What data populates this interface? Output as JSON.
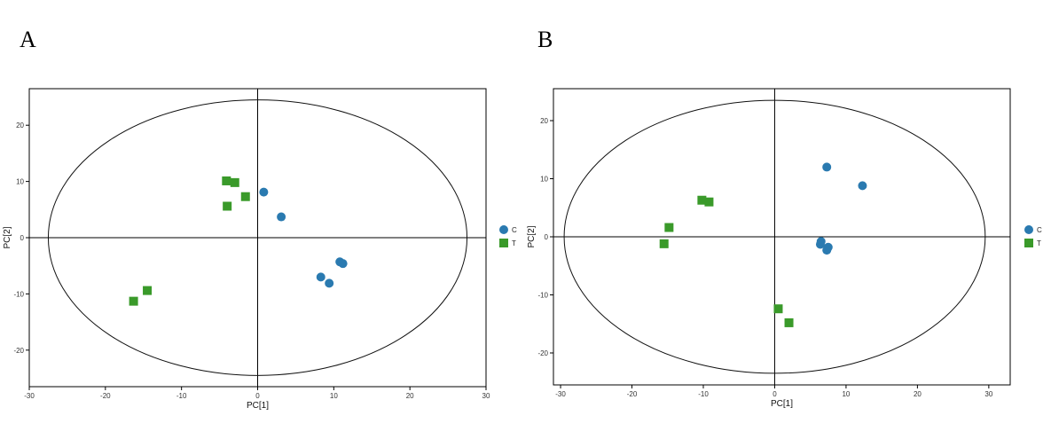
{
  "panels": [
    {
      "letter": "A",
      "chart_data": {
        "type": "scatter",
        "title": "",
        "xlabel": "PC[1]",
        "ylabel": "PC[2]",
        "xlim": [
          -30,
          30
        ],
        "ylim": [
          -26.5,
          26.5
        ],
        "xticks": [
          -30,
          -20,
          -10,
          0,
          10,
          20,
          30
        ],
        "yticks": [
          -20,
          -10,
          0,
          10,
          20
        ],
        "ellipse": {
          "rx": 27.5,
          "ry": 24.5
        },
        "grid": false,
        "legend_position": "right",
        "series": [
          {
            "name": "C",
            "marker": "circle",
            "color": "#2a7ab0",
            "points": [
              [
                0.8,
                8.1
              ],
              [
                3.1,
                3.7
              ],
              [
                8.3,
                -7.0
              ],
              [
                9.4,
                -8.1
              ],
              [
                10.8,
                -4.3
              ],
              [
                11.2,
                -4.6
              ]
            ]
          },
          {
            "name": "T",
            "marker": "square",
            "color": "#3a9a2a",
            "points": [
              [
                -4.1,
                10.1
              ],
              [
                -3.0,
                9.8
              ],
              [
                -1.6,
                7.3
              ],
              [
                -4.0,
                5.6
              ],
              [
                -14.5,
                -9.4
              ],
              [
                -16.3,
                -11.3
              ]
            ]
          }
        ]
      }
    },
    {
      "letter": "B",
      "chart_data": {
        "type": "scatter",
        "title": "",
        "xlabel": "PC[1]",
        "ylabel": "PC[2]",
        "xlim": [
          -31,
          33
        ],
        "ylim": [
          -25.5,
          25.5
        ],
        "xticks": [
          -30,
          -20,
          -10,
          0,
          10,
          20,
          30
        ],
        "yticks": [
          -20,
          -10,
          0,
          10,
          20
        ],
        "ellipse": {
          "rx": 29.5,
          "ry": 23.5
        },
        "grid": false,
        "legend_position": "right",
        "series": [
          {
            "name": "C",
            "marker": "circle",
            "color": "#2a7ab0",
            "points": [
              [
                7.3,
                12.0
              ],
              [
                12.3,
                8.8
              ],
              [
                6.5,
                -0.8
              ],
              [
                6.4,
                -1.3
              ],
              [
                7.5,
                -1.8
              ],
              [
                7.3,
                -2.3
              ]
            ]
          },
          {
            "name": "T",
            "marker": "square",
            "color": "#3a9a2a",
            "points": [
              [
                -10.2,
                6.3
              ],
              [
                -9.2,
                6.0
              ],
              [
                -14.8,
                1.6
              ],
              [
                -15.5,
                -1.2
              ],
              [
                0.5,
                -12.4
              ],
              [
                2.0,
                -14.8
              ]
            ]
          }
        ]
      }
    }
  ]
}
